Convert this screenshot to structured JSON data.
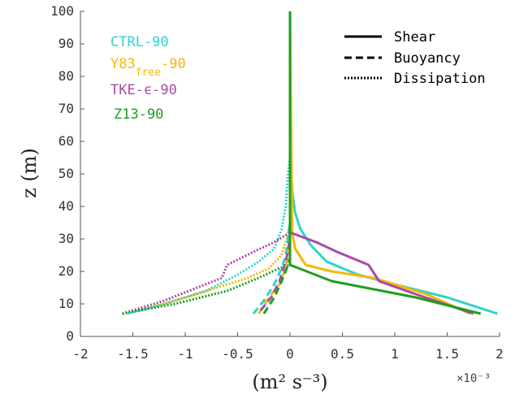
{
  "chart_data": {
    "type": "line",
    "xlabel": "(m² s⁻³)",
    "ylabel": "z (m)",
    "x_exponent_label": "×10⁻³",
    "xlim": [
      -2,
      2
    ],
    "ylim": [
      0,
      100
    ],
    "xticks": [
      -2,
      -1.5,
      -1,
      -0.5,
      0,
      0.5,
      1,
      1.5,
      2
    ],
    "xtick_labels": [
      "-2",
      "-1.5",
      "-1",
      "-0.5",
      "0",
      "0.5",
      "1",
      "1.5",
      "2"
    ],
    "yticks": [
      0,
      10,
      20,
      30,
      40,
      50,
      60,
      70,
      80,
      90,
      100
    ],
    "ytick_labels": [
      "0",
      "10",
      "20",
      "30",
      "40",
      "50",
      "60",
      "70",
      "80",
      "90",
      "100"
    ],
    "grid": false,
    "models": [
      {
        "label": "CTRL-90",
        "subscript": "",
        "suffix": "",
        "color": "#2fd3d0"
      },
      {
        "label": "Y83",
        "subscript": "free",
        "suffix": "-90",
        "color": "#f5b800"
      },
      {
        "label": "TKE-ϵ-90",
        "subscript": "",
        "suffix": "",
        "color": "#a94aa9"
      },
      {
        "label": "Z13-90",
        "subscript": "",
        "suffix": "",
        "color": "#1e9e1e"
      }
    ],
    "term_legend": [
      {
        "label": "Shear",
        "style": "solid"
      },
      {
        "label": "Buoyancy",
        "style": "dashed"
      },
      {
        "label": "Dissipation",
        "style": "dotted"
      }
    ],
    "series": [
      {
        "model": 0,
        "term": "Shear",
        "points": [
          [
            1.98,
            7
          ],
          [
            1.5,
            12
          ],
          [
            1.0,
            16
          ],
          [
            0.65,
            19
          ],
          [
            0.35,
            23
          ],
          [
            0.2,
            28
          ],
          [
            0.1,
            33
          ],
          [
            0.05,
            38
          ],
          [
            0.02,
            45
          ],
          [
            0.01,
            55
          ],
          [
            0,
            100
          ]
        ]
      },
      {
        "model": 1,
        "term": "Shear",
        "points": [
          [
            1.72,
            7
          ],
          [
            1.3,
            13
          ],
          [
            0.8,
            18
          ],
          [
            0.4,
            20
          ],
          [
            0.15,
            22
          ],
          [
            0.05,
            27
          ],
          [
            0.02,
            32
          ],
          [
            0,
            100
          ]
        ]
      },
      {
        "model": 2,
        "term": "Shear",
        "points": [
          [
            1.75,
            7
          ],
          [
            1.2,
            13
          ],
          [
            0.85,
            17
          ],
          [
            0.75,
            22
          ],
          [
            0.45,
            26
          ],
          [
            0.25,
            29
          ],
          [
            0,
            32
          ],
          [
            0,
            100
          ]
        ]
      },
      {
        "model": 3,
        "term": "Shear",
        "points": [
          [
            1.82,
            7
          ],
          [
            1.2,
            12
          ],
          [
            0.4,
            17
          ],
          [
            0,
            22
          ],
          [
            0,
            100
          ]
        ]
      },
      {
        "model": 0,
        "term": "Buoyancy",
        "points": [
          [
            -0.35,
            7
          ],
          [
            -0.25,
            11
          ],
          [
            -0.15,
            16
          ],
          [
            -0.08,
            21
          ],
          [
            -0.04,
            25
          ],
          [
            -0.02,
            30
          ],
          [
            0,
            35
          ]
        ]
      },
      {
        "model": 1,
        "term": "Buoyancy",
        "points": [
          [
            -0.3,
            7
          ],
          [
            -0.2,
            12
          ],
          [
            -0.1,
            16
          ],
          [
            -0.05,
            20
          ],
          [
            -0.02,
            25
          ],
          [
            0,
            30
          ]
        ]
      },
      {
        "model": 2,
        "term": "Buoyancy",
        "points": [
          [
            -0.28,
            8
          ],
          [
            -0.18,
            12
          ],
          [
            -0.1,
            17
          ],
          [
            -0.05,
            22
          ],
          [
            -0.02,
            26
          ],
          [
            0,
            31
          ]
        ]
      },
      {
        "model": 3,
        "term": "Buoyancy",
        "points": [
          [
            -0.25,
            7
          ],
          [
            -0.15,
            12
          ],
          [
            -0.08,
            17
          ],
          [
            -0.03,
            21
          ],
          [
            0,
            24
          ]
        ]
      },
      {
        "model": 0,
        "term": "Dissipation",
        "points": [
          [
            -1.55,
            7
          ],
          [
            -1.2,
            10
          ],
          [
            -0.8,
            14
          ],
          [
            -0.5,
            19
          ],
          [
            -0.3,
            23
          ],
          [
            -0.15,
            27
          ],
          [
            -0.08,
            33
          ],
          [
            -0.04,
            40
          ],
          [
            -0.02,
            50
          ],
          [
            0,
            55
          ]
        ]
      },
      {
        "model": 1,
        "term": "Dissipation",
        "points": [
          [
            -1.6,
            7
          ],
          [
            -1.2,
            10
          ],
          [
            -0.8,
            14
          ],
          [
            -0.4,
            18
          ],
          [
            -0.2,
            21
          ],
          [
            -0.08,
            25
          ],
          [
            -0.03,
            30
          ],
          [
            0,
            35
          ]
        ]
      },
      {
        "model": 2,
        "term": "Dissipation",
        "points": [
          [
            -1.6,
            7
          ],
          [
            -1.2,
            11
          ],
          [
            -0.65,
            18
          ],
          [
            -0.6,
            22
          ],
          [
            -0.35,
            26
          ],
          [
            -0.15,
            29
          ],
          [
            -0.05,
            31
          ],
          [
            0,
            32
          ]
        ]
      },
      {
        "model": 3,
        "term": "Dissipation",
        "points": [
          [
            -1.6,
            7
          ],
          [
            -1.1,
            10
          ],
          [
            -0.6,
            14
          ],
          [
            -0.3,
            18
          ],
          [
            -0.1,
            21
          ],
          [
            0,
            22
          ]
        ]
      }
    ]
  }
}
